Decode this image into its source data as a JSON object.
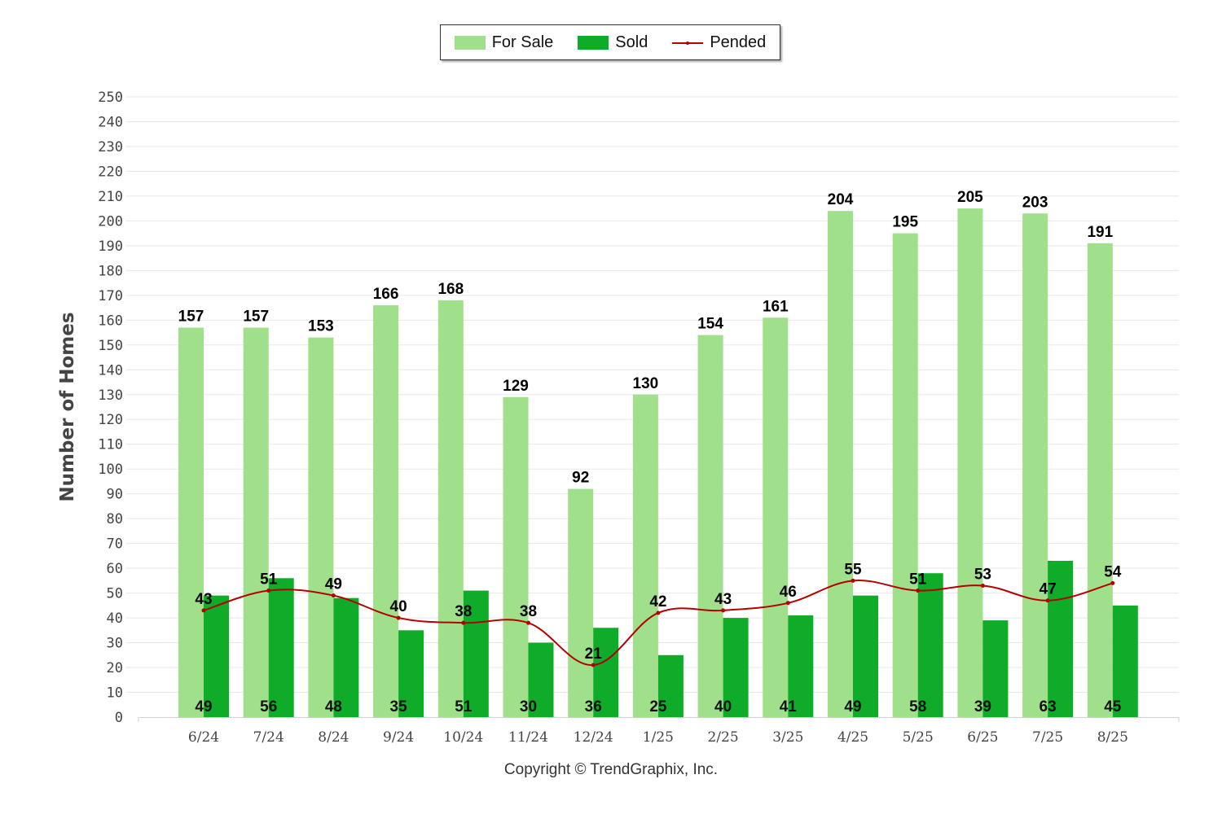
{
  "chart_data": {
    "type": "bar",
    "categories": [
      "6/24",
      "7/24",
      "8/24",
      "9/24",
      "10/24",
      "11/24",
      "12/24",
      "1/25",
      "2/25",
      "3/25",
      "4/25",
      "5/25",
      "6/25",
      "7/25",
      "8/25"
    ],
    "series": [
      {
        "name": "For Sale",
        "kind": "bar",
        "color": "#a0e08a",
        "values": [
          157,
          157,
          153,
          166,
          168,
          129,
          92,
          130,
          154,
          161,
          204,
          195,
          205,
          203,
          191
        ]
      },
      {
        "name": "Sold",
        "kind": "bar",
        "color": "#0eac28",
        "values": [
          49,
          56,
          48,
          35,
          51,
          30,
          36,
          25,
          40,
          41,
          49,
          58,
          39,
          63,
          45
        ]
      },
      {
        "name": "Pended",
        "kind": "line",
        "color": "#b30000",
        "values": [
          43,
          51,
          49,
          40,
          38,
          38,
          21,
          42,
          43,
          46,
          55,
          51,
          53,
          47,
          54
        ]
      }
    ],
    "ylabel": "Number of Homes",
    "xlabel": "",
    "ylim": [
      0,
      250
    ],
    "ytick_step": 10,
    "grid": true,
    "legend_position": "top-center",
    "data_labels": true
  },
  "legend": {
    "for_sale": "For Sale",
    "sold": "Sold",
    "pended": "Pended"
  },
  "copyright": "Copyright © TrendGraphix, Inc."
}
